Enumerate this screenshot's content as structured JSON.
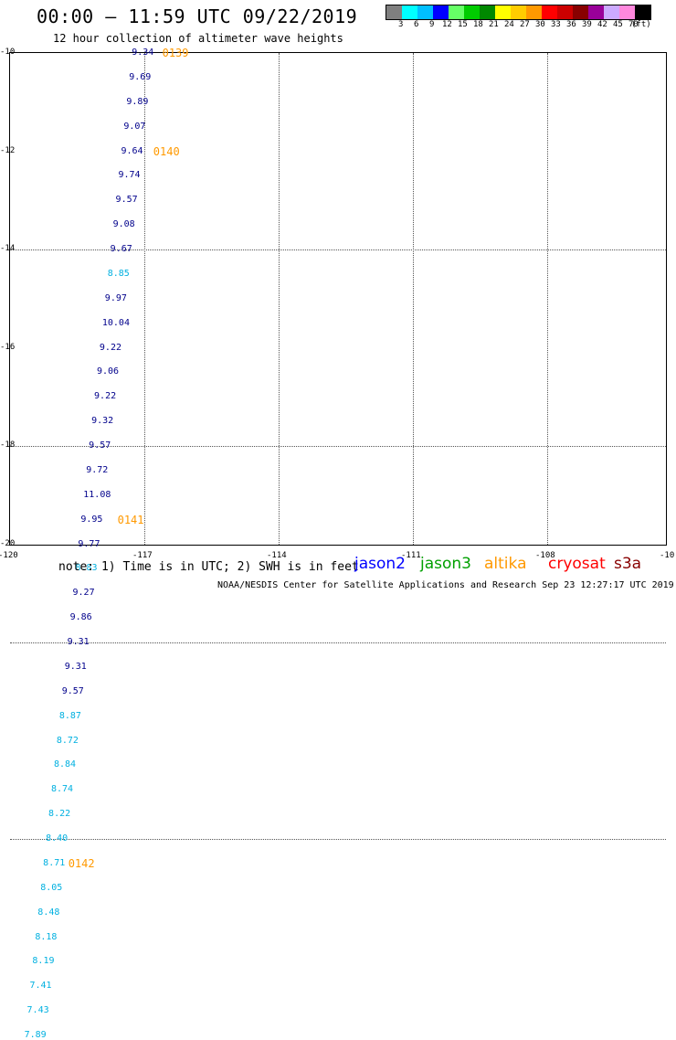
{
  "header": {
    "title": "00:00 – 11:59 UTC 09/22/2019",
    "subtitle": "12 hour collection of altimeter wave heights"
  },
  "legend": {
    "unit": "(ft)",
    "bins": [
      {
        "label": "3",
        "color": "#7f7f7f"
      },
      {
        "label": "6",
        "color": "#00ffff"
      },
      {
        "label": "9",
        "color": "#00bfff"
      },
      {
        "label": "12",
        "color": "#0000ff"
      },
      {
        "label": "15",
        "color": "#66ff66"
      },
      {
        "label": "18",
        "color": "#00cc00"
      },
      {
        "label": "21",
        "color": "#008800"
      },
      {
        "label": "24",
        "color": "#ffff00"
      },
      {
        "label": "27",
        "color": "#ffcc00"
      },
      {
        "label": "30",
        "color": "#ff9900"
      },
      {
        "label": "33",
        "color": "#ff0000"
      },
      {
        "label": "36",
        "color": "#cc0000"
      },
      {
        "label": "39",
        "color": "#880000"
      },
      {
        "label": "42",
        "color": "#990099"
      },
      {
        "label": "45",
        "color": "#ccaaff"
      },
      {
        "label": "70",
        "color": "#ff88dd"
      },
      {
        "label": "",
        "color": "#000000"
      }
    ]
  },
  "axes": {
    "lat_labels": [
      "-10",
      "-12",
      "-14",
      "-16",
      "-18",
      "-20"
    ],
    "lon_labels": [
      "-120",
      "-117",
      "-114",
      "-111",
      "-108",
      "-10"
    ]
  },
  "colors": {
    "dark": "#00008b",
    "light": "#00b0e0",
    "pass": "#ff9900"
  },
  "observations": [
    {
      "v": "9.34",
      "lat": -10.0,
      "lon": -117.2,
      "c": "dark"
    },
    {
      "v": "9.69",
      "lat": -10.25,
      "lon": -117.26,
      "c": "dark"
    },
    {
      "v": "9.89",
      "lat": -10.5,
      "lon": -117.32,
      "c": "dark"
    },
    {
      "v": "9.07",
      "lat": -10.75,
      "lon": -117.38,
      "c": "dark"
    },
    {
      "v": "9.64",
      "lat": -11.0,
      "lon": -117.44,
      "c": "dark"
    },
    {
      "v": "9.74",
      "lat": -11.25,
      "lon": -117.5,
      "c": "dark"
    },
    {
      "v": "9.57",
      "lat": -11.5,
      "lon": -117.56,
      "c": "dark"
    },
    {
      "v": "9.08",
      "lat": -11.75,
      "lon": -117.62,
      "c": "dark"
    },
    {
      "v": "9.67",
      "lat": -12.0,
      "lon": -117.68,
      "c": "dark"
    },
    {
      "v": "8.85",
      "lat": -12.25,
      "lon": -117.74,
      "c": "light"
    },
    {
      "v": "9.97",
      "lat": -12.5,
      "lon": -117.8,
      "c": "dark"
    },
    {
      "v": "10.04",
      "lat": -12.75,
      "lon": -117.86,
      "c": "dark"
    },
    {
      "v": "9.22",
      "lat": -13.0,
      "lon": -117.92,
      "c": "dark"
    },
    {
      "v": "9.06",
      "lat": -13.25,
      "lon": -117.98,
      "c": "dark"
    },
    {
      "v": "9.22",
      "lat": -13.5,
      "lon": -118.04,
      "c": "dark"
    },
    {
      "v": "9.32",
      "lat": -13.75,
      "lon": -118.1,
      "c": "dark"
    },
    {
      "v": "9.57",
      "lat": -14.0,
      "lon": -118.16,
      "c": "dark"
    },
    {
      "v": "9.72",
      "lat": -14.25,
      "lon": -118.22,
      "c": "dark"
    },
    {
      "v": "11.08",
      "lat": -14.5,
      "lon": -118.28,
      "c": "dark"
    },
    {
      "v": "9.95",
      "lat": -14.75,
      "lon": -118.34,
      "c": "dark"
    },
    {
      "v": "9.77",
      "lat": -15.0,
      "lon": -118.4,
      "c": "dark"
    },
    {
      "v": "8.83",
      "lat": -15.25,
      "lon": -118.46,
      "c": "light"
    },
    {
      "v": "9.27",
      "lat": -15.5,
      "lon": -118.52,
      "c": "dark"
    },
    {
      "v": "9.86",
      "lat": -15.75,
      "lon": -118.58,
      "c": "dark"
    },
    {
      "v": "9.31",
      "lat": -16.0,
      "lon": -118.64,
      "c": "dark"
    },
    {
      "v": "9.31",
      "lat": -16.25,
      "lon": -118.7,
      "c": "dark"
    },
    {
      "v": "9.57",
      "lat": -16.5,
      "lon": -118.76,
      "c": "dark"
    },
    {
      "v": "8.87",
      "lat": -16.75,
      "lon": -118.82,
      "c": "light"
    },
    {
      "v": "8.72",
      "lat": -17.0,
      "lon": -118.88,
      "c": "light"
    },
    {
      "v": "8.84",
      "lat": -17.25,
      "lon": -118.94,
      "c": "light"
    },
    {
      "v": "8.74",
      "lat": -17.5,
      "lon": -119.0,
      "c": "light"
    },
    {
      "v": "8.22",
      "lat": -17.75,
      "lon": -119.06,
      "c": "light"
    },
    {
      "v": "8.40",
      "lat": -18.0,
      "lon": -119.12,
      "c": "light"
    },
    {
      "v": "8.71",
      "lat": -18.25,
      "lon": -119.18,
      "c": "light"
    },
    {
      "v": "8.05",
      "lat": -18.5,
      "lon": -119.24,
      "c": "light"
    },
    {
      "v": "8.48",
      "lat": -18.75,
      "lon": -119.3,
      "c": "light"
    },
    {
      "v": "8.18",
      "lat": -19.0,
      "lon": -119.36,
      "c": "light"
    },
    {
      "v": "8.19",
      "lat": -19.25,
      "lon": -119.42,
      "c": "light"
    },
    {
      "v": "7.41",
      "lat": -19.5,
      "lon": -119.48,
      "c": "light"
    },
    {
      "v": "7.43",
      "lat": -19.75,
      "lon": -119.54,
      "c": "light"
    },
    {
      "v": "7.89",
      "lat": -20.0,
      "lon": -119.6,
      "c": "light"
    }
  ],
  "pass_labels": [
    {
      "text": "0139",
      "lat": -10.0,
      "lon": -116.6
    },
    {
      "text": "0140",
      "lat": -11.0,
      "lon": -116.8
    },
    {
      "text": "0141",
      "lat": -14.75,
      "lon": -117.6
    },
    {
      "text": "0142",
      "lat": -18.25,
      "lon": -118.7
    }
  ],
  "footer": {
    "note": "note: 1) Time is in UTC; 2) SWH is in feet",
    "satellites": [
      {
        "name": "jason2",
        "color": "#0000ff"
      },
      {
        "name": "jason3",
        "color": "#00a000"
      },
      {
        "name": "altika",
        "color": "#ff9900"
      },
      {
        "name": "cryosat",
        "color": "#ff0000"
      },
      {
        "name": "s3a",
        "color": "#880000"
      }
    ],
    "credit": "NOAA/NESDIS Center for Satellite Applications and Research    Sep 23 12:27:17 UTC 2019"
  }
}
